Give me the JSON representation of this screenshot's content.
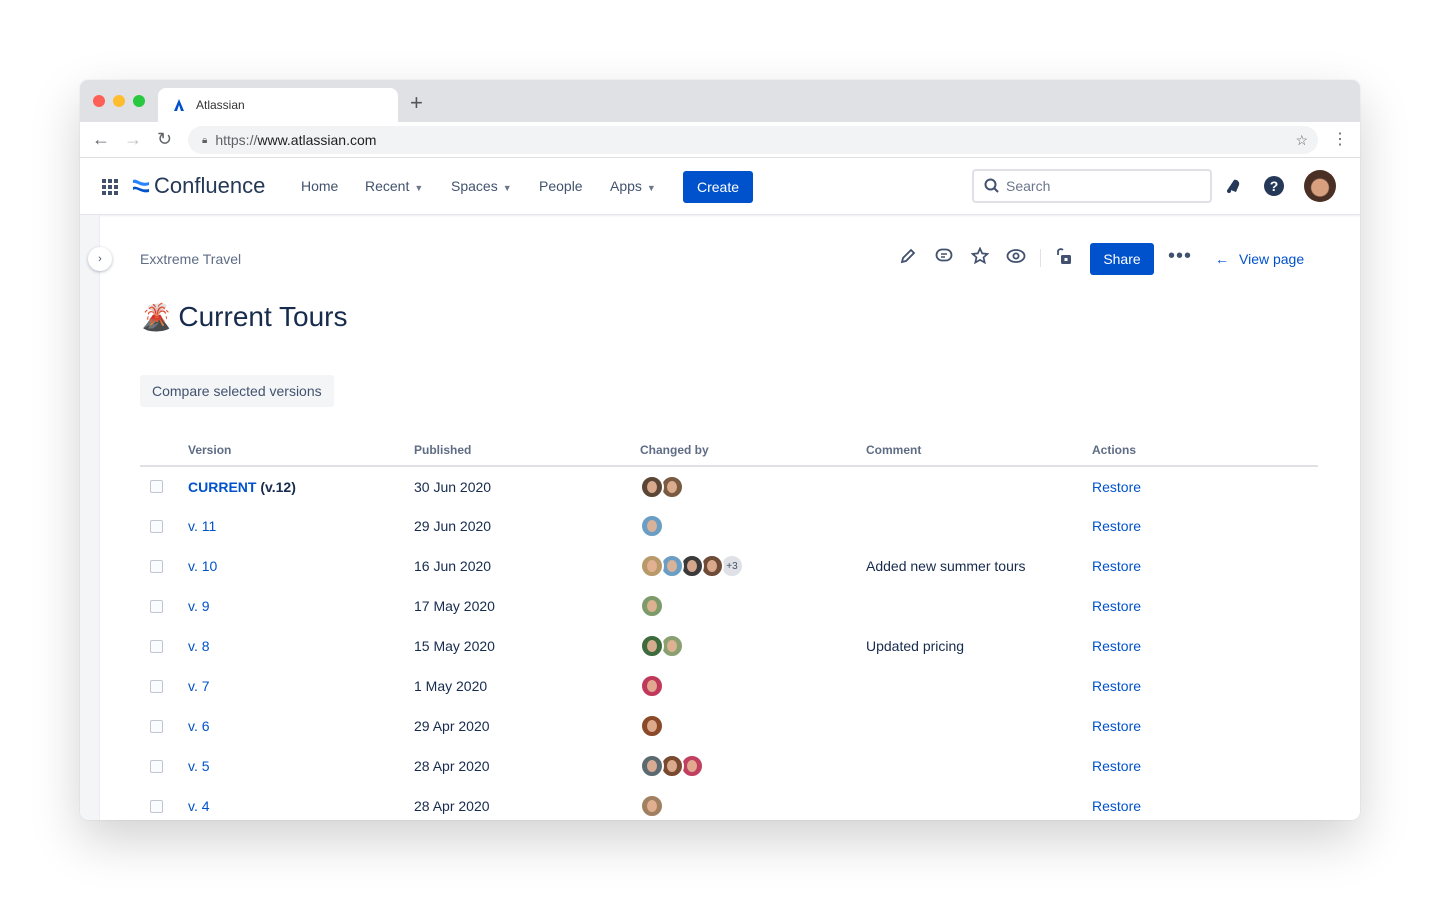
{
  "browser": {
    "tab_title": "Atlassian",
    "url_prefix": "https://",
    "url_host": "www.atlassian.com"
  },
  "nav": {
    "product": "Confluence",
    "items": [
      {
        "label": "Home"
      },
      {
        "label": "Recent",
        "dropdown": true
      },
      {
        "label": "Spaces",
        "dropdown": true
      },
      {
        "label": "People"
      },
      {
        "label": "Apps",
        "dropdown": true
      }
    ],
    "create": "Create",
    "search_placeholder": "Search"
  },
  "page": {
    "breadcrumb": "Exxtreme Travel",
    "title": "Current Tours",
    "emoji": "🌋",
    "share": "Share",
    "view_page": "View page",
    "compare": "Compare selected versions"
  },
  "table": {
    "headers": [
      "Version",
      "Published",
      "Changed by",
      "Comment",
      "Actions"
    ],
    "rows": [
      {
        "version": "CURRENT",
        "suffix": " (v.12)",
        "published": "30 Jun 2020",
        "avatars": [
          "#5b4636",
          "#7a5a40"
        ],
        "extra": "",
        "comment": "",
        "action": "Restore"
      },
      {
        "version": "v. 11",
        "published": "29 Jun 2020",
        "avatars": [
          "#6a9ec4"
        ],
        "extra": "",
        "comment": "",
        "action": "Restore"
      },
      {
        "version": "v. 10",
        "published": "16 Jun 2020",
        "avatars": [
          "#b89a6a",
          "#6a9ec4",
          "#3a3a3a",
          "#6e4c38"
        ],
        "extra": "+3",
        "comment": "Added new summer tours",
        "action": "Restore"
      },
      {
        "version": "v. 9",
        "published": "17 May 2020",
        "avatars": [
          "#7d9a6a"
        ],
        "extra": "",
        "comment": "",
        "action": "Restore"
      },
      {
        "version": "v. 8",
        "published": "15 May 2020",
        "avatars": [
          "#3d6b3d",
          "#8aa070"
        ],
        "extra": "",
        "comment": "Updated pricing",
        "action": "Restore"
      },
      {
        "version": "v. 7",
        "published": "1 May 2020",
        "avatars": [
          "#c0395a"
        ],
        "extra": "",
        "comment": "",
        "action": "Restore"
      },
      {
        "version": "v. 6",
        "published": "29 Apr 2020",
        "avatars": [
          "#8a4a2a"
        ],
        "extra": "",
        "comment": "",
        "action": "Restore"
      },
      {
        "version": "v. 5",
        "published": "28 Apr 2020",
        "avatars": [
          "#5a6a70",
          "#7a4a30",
          "#c04060"
        ],
        "extra": "",
        "comment": "",
        "action": "Restore"
      },
      {
        "version": "v. 4",
        "published": "28 Apr 2020",
        "avatars": [
          "#a08060"
        ],
        "extra": "",
        "comment": "",
        "action": "Restore"
      }
    ]
  },
  "colors": {
    "primary": "#0052cc",
    "text": "#172b4d"
  }
}
